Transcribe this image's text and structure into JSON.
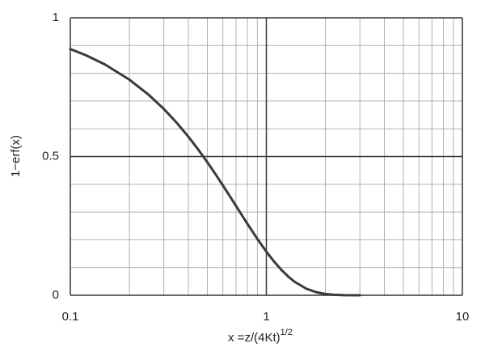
{
  "chart_data": {
    "type": "line",
    "ylabel": "1−erf(x)",
    "xlabel": "x =z/(4Kt)",
    "xlabel_superscript": "1/2",
    "x": [
      0.1,
      0.12,
      0.15,
      0.2,
      0.25,
      0.3,
      0.35,
      0.4,
      0.45,
      0.5,
      0.55,
      0.6,
      0.65,
      0.7,
      0.8,
      0.9,
      1,
      1.1,
      1.2,
      1.3,
      1.4,
      1.6,
      1.8,
      2,
      2.2,
      2.5,
      3
    ],
    "series": [
      {
        "color": "#3a3a3a",
        "values": [
          0.8875,
          0.8652,
          0.832,
          0.7773,
          0.7237,
          0.6714,
          0.6206,
          0.5716,
          0.5245,
          0.4795,
          0.4367,
          0.3961,
          0.358,
          0.3222,
          0.2579,
          0.2031,
          0.1573,
          0.1198,
          0.0897,
          0.066,
          0.0477,
          0.0237,
          0.0109,
          0.0047,
          0.0019,
          0.0004,
          2e-05
        ]
      }
    ],
    "xscale": "log",
    "xlim": [
      0.1,
      10
    ],
    "ylim": [
      0,
      1
    ],
    "xticks": [
      0.1,
      1,
      10
    ],
    "yticks": [
      0,
      0.5,
      1
    ],
    "x_minor_ticks": [
      0.2,
      0.3,
      0.4,
      0.5,
      0.6,
      0.7,
      0.8,
      0.9,
      2,
      3,
      4,
      5,
      6,
      7,
      8,
      9
    ],
    "y_minor_ticks": [
      0.1,
      0.2,
      0.3,
      0.4,
      0.6,
      0.7,
      0.8,
      0.9
    ],
    "grid": true
  }
}
